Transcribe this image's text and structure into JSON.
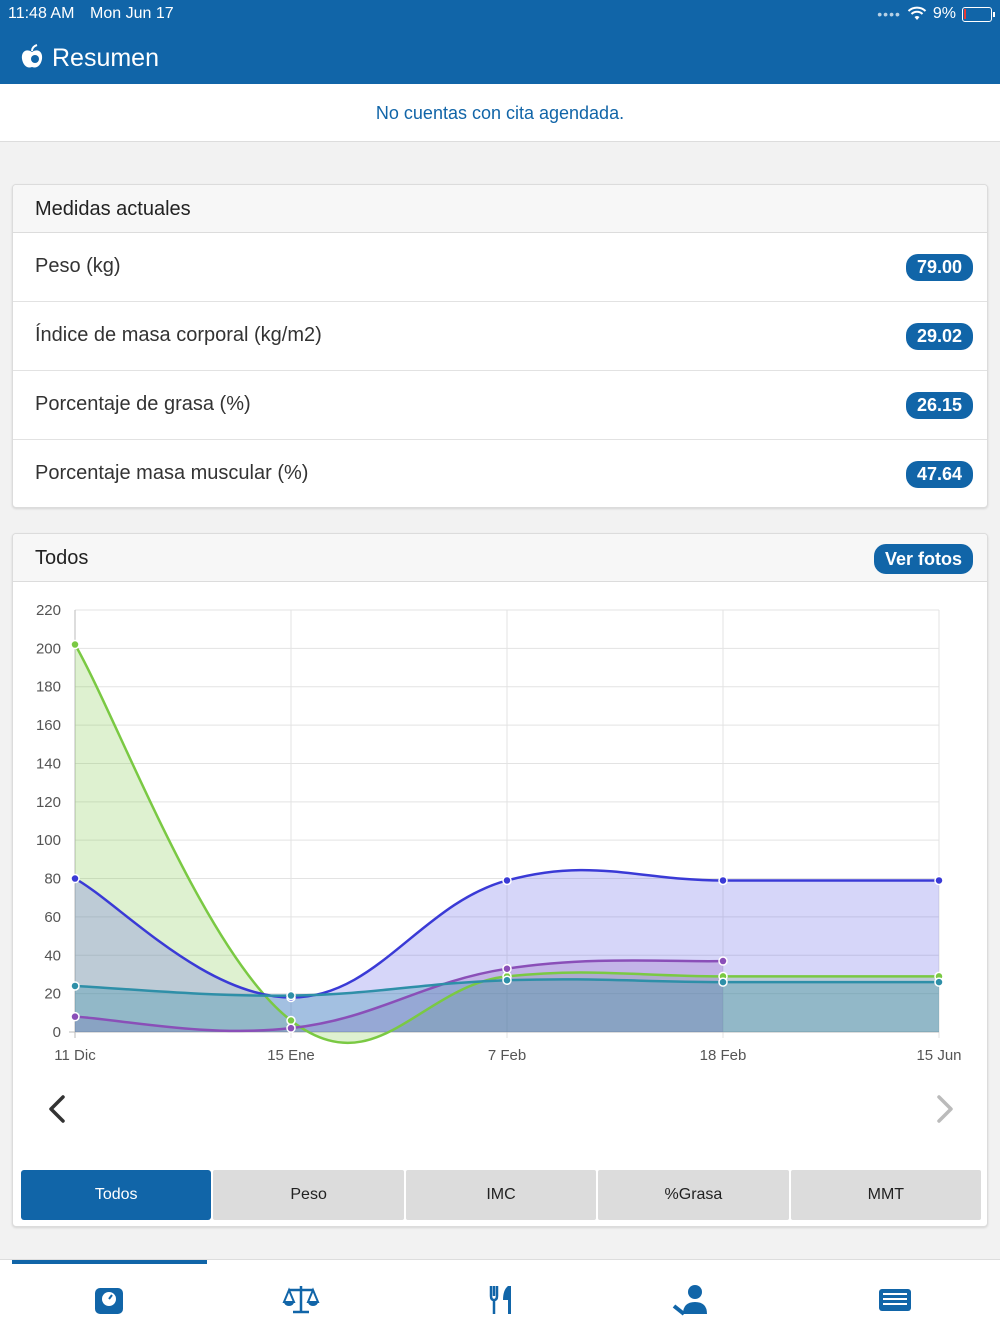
{
  "status_bar": {
    "time": "11:48 AM",
    "date": "Mon Jun 17",
    "battery": "9%",
    "battery_level": 0.09
  },
  "header": {
    "title": "Resumen",
    "logo_icon": "apple-logo-icon"
  },
  "appointment_notice": "No cuentas con cita agendada.",
  "measures_card": {
    "title": "Medidas actuales",
    "rows": [
      {
        "label": "Peso (kg)",
        "value": "79.00"
      },
      {
        "label": "Índice de masa corporal (kg/m2)",
        "value": "29.02"
      },
      {
        "label": "Porcentaje de grasa (%)",
        "value": "26.15"
      },
      {
        "label": "Porcentaje masa muscular (%)",
        "value": "47.64"
      }
    ]
  },
  "chart_card": {
    "title": "Todos",
    "photos_button": "Ver fotos",
    "tabs": [
      "Todos",
      "Peso",
      "IMC",
      "%Grasa",
      "MMT"
    ],
    "active_tab": 0
  },
  "chart_data": {
    "type": "area",
    "x": [
      "11 Dic",
      "15 Ene",
      "7 Feb",
      "18 Feb",
      "15 Jun"
    ],
    "ylim": [
      0,
      220
    ],
    "yticks": [
      0,
      20,
      40,
      60,
      80,
      100,
      120,
      140,
      160,
      180,
      200,
      220
    ],
    "grid": true,
    "series": [
      {
        "values": [
          202,
          6,
          29,
          29,
          29
        ],
        "color": "#7ac943",
        "fill": "rgba(122,201,67,0.25)"
      },
      {
        "values": [
          80,
          18,
          79,
          79,
          79
        ],
        "color": "#3a3ad6",
        "fill": "rgba(90,90,230,0.25)"
      },
      {
        "values": [
          8,
          2,
          33,
          37,
          null
        ],
        "color": "#8a4fb8",
        "fill": "rgba(138,79,184,0.25)"
      },
      {
        "values": [
          24,
          19,
          27,
          26,
          26
        ],
        "color": "#2e8fa8",
        "fill": "rgba(46,143,168,0.3)"
      }
    ]
  },
  "tab_bar": {
    "items": [
      "scale-dashboard-icon",
      "balance-icon",
      "fork-knife-icon",
      "user-edit-icon",
      "news-icon"
    ]
  }
}
